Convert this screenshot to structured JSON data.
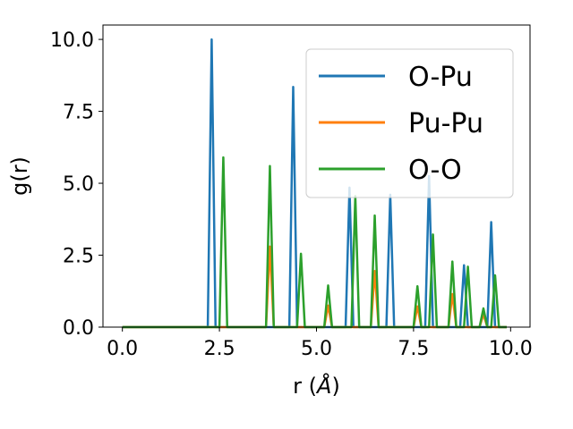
{
  "chart_data": {
    "type": "line",
    "xlabel_prefix": "r (",
    "xlabel_symbol": "Å",
    "xlabel_suffix": ")",
    "ylabel": "g(r)",
    "xlim": [
      -0.5,
      10.5
    ],
    "ylim": [
      0,
      10.5
    ],
    "xticks": [
      0,
      2.5,
      5,
      7.5,
      10
    ],
    "xtick_labels": [
      "0.0",
      "2.5",
      "5.0",
      "7.5",
      "10.0"
    ],
    "yticks": [
      0,
      2.5,
      5,
      7.5,
      10
    ],
    "ytick_labels": [
      "0.0",
      "2.5",
      "5.0",
      "7.5",
      "10.0"
    ],
    "grid": false,
    "legend_position": "upper-right",
    "series": [
      {
        "name": "O-Pu",
        "color": "#1f77b4",
        "x": [
          0,
          2.2,
          2.3,
          2.4,
          4.3,
          4.4,
          4.5,
          5.75,
          5.85,
          5.95,
          6.8,
          6.9,
          7.0,
          7.8,
          7.9,
          8.0,
          8.7,
          8.8,
          8.9,
          9.4,
          9.5,
          9.6,
          9.9
        ],
        "y": [
          0,
          0,
          10.0,
          0,
          0,
          8.35,
          0,
          0,
          4.85,
          0,
          0,
          4.6,
          0,
          0,
          5.25,
          0,
          0,
          2.15,
          0,
          0,
          3.65,
          0,
          0
        ]
      },
      {
        "name": "Pu-Pu",
        "color": "#ff7f0e",
        "x": [
          0,
          3.7,
          3.8,
          3.9,
          5.2,
          5.3,
          5.4,
          6.4,
          6.5,
          6.6,
          7.5,
          7.6,
          7.7,
          8.4,
          8.5,
          8.6,
          9.2,
          9.3,
          9.4,
          9.9
        ],
        "y": [
          0,
          0,
          2.8,
          0,
          0,
          0.75,
          0,
          0,
          1.95,
          0,
          0,
          0.72,
          0,
          0,
          1.15,
          0,
          0,
          0.45,
          0,
          0
        ]
      },
      {
        "name": "O-O",
        "color": "#2ca02c",
        "x": [
          0,
          2.5,
          2.6,
          2.7,
          3.7,
          3.8,
          3.9,
          4.5,
          4.6,
          4.7,
          5.2,
          5.3,
          5.4,
          5.9,
          6.0,
          6.1,
          6.4,
          6.5,
          6.6,
          7.5,
          7.6,
          7.7,
          7.9,
          8.0,
          8.1,
          8.4,
          8.5,
          8.6,
          8.8,
          8.9,
          9.0,
          9.2,
          9.3,
          9.4,
          9.5,
          9.6,
          9.7,
          9.9
        ],
        "y": [
          0,
          0,
          5.9,
          0,
          0,
          5.6,
          0,
          0,
          2.55,
          0,
          0,
          1.45,
          0,
          0,
          4.55,
          0,
          0,
          3.88,
          0,
          0,
          1.42,
          0,
          0,
          3.22,
          0,
          0,
          2.28,
          0,
          0,
          2.1,
          0,
          0,
          0.65,
          0,
          0,
          1.8,
          0,
          0
        ]
      }
    ]
  }
}
